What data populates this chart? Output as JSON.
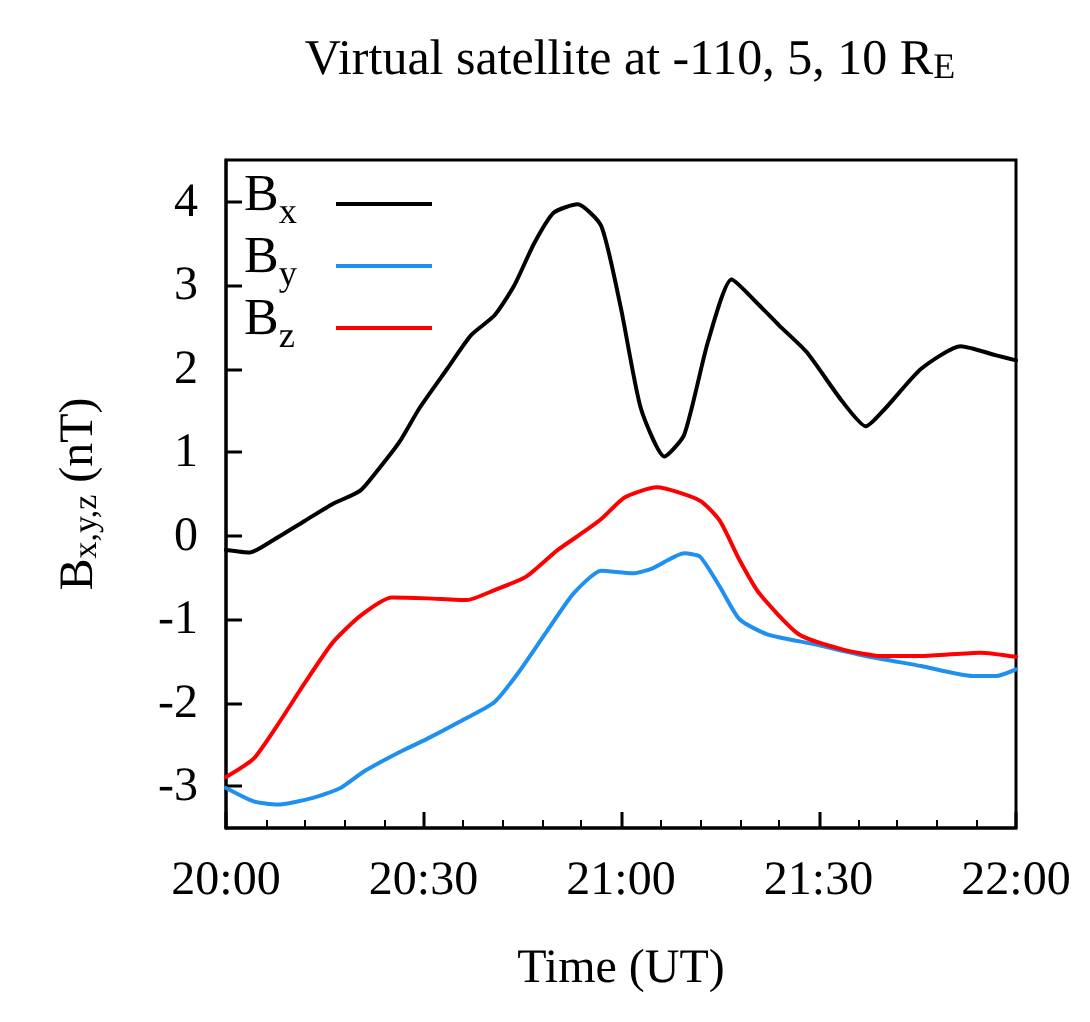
{
  "chart_data": {
    "type": "line",
    "title": "Virtual satellite at -110, 5, 10 R$_{E}$",
    "xlabel": "Time (UT)",
    "ylabel": "B$_{x,y,z}$ (nT)",
    "xlim": [
      20,
      22
    ],
    "xticks": [
      {
        "value": 20,
        "label": "20:00"
      },
      {
        "value": 20.5,
        "label": "20:30"
      },
      {
        "value": 21,
        "label": "21:00"
      },
      {
        "value": 21.5,
        "label": "21:30"
      },
      {
        "value": 22,
        "label": "22:00"
      }
    ],
    "ylim": [
      -3.5,
      4.5
    ],
    "yticks": [
      -3,
      -2,
      -1,
      0,
      1,
      2,
      3,
      4
    ],
    "grid": false,
    "legend": "top left",
    "marker": "none",
    "line_style": "solid",
    "series": [
      {
        "name": "B$_{x}$",
        "color": "#000000",
        "x": [
          20,
          20.06,
          20.12,
          20.2,
          20.27,
          20.34,
          20.39,
          20.44,
          20.49,
          20.56,
          20.62,
          20.68,
          20.73,
          20.78,
          20.83,
          20.89,
          20.95,
          21.0,
          21.05,
          21.11,
          21.16,
          21.22,
          21.28,
          21.35,
          21.4,
          21.47,
          21.56,
          21.62,
          21.67,
          21.76,
          21.86,
          21.95,
          22.0
        ],
        "values": [
          -0.17,
          -0.2,
          -0.05,
          0.18,
          0.38,
          0.54,
          0.82,
          1.13,
          1.53,
          2.0,
          2.4,
          2.64,
          3.0,
          3.5,
          3.87,
          3.97,
          3.71,
          2.72,
          1.53,
          0.95,
          1.21,
          2.32,
          3.07,
          2.76,
          2.52,
          2.2,
          1.61,
          1.31,
          1.53,
          2.0,
          2.27,
          2.16,
          2.1
        ]
      },
      {
        "name": "B$_{y}$",
        "color": "#2090f0",
        "x": [
          20,
          20.07,
          20.13,
          20.22,
          20.29,
          20.35,
          20.44,
          20.51,
          20.59,
          20.68,
          20.74,
          20.81,
          20.88,
          20.95,
          21.03,
          21.08,
          21.16,
          21.2,
          21.25,
          21.3,
          21.37,
          21.49,
          21.62,
          21.76,
          21.89,
          21.95,
          22.0
        ],
        "values": [
          -3.02,
          -3.18,
          -3.22,
          -3.14,
          -3.02,
          -2.82,
          -2.59,
          -2.43,
          -2.23,
          -1.99,
          -1.64,
          -1.16,
          -0.69,
          -0.42,
          -0.45,
          -0.39,
          -0.21,
          -0.25,
          -0.61,
          -1.0,
          -1.18,
          -1.3,
          -1.44,
          -1.56,
          -1.68,
          -1.68,
          -1.6
        ]
      },
      {
        "name": "B$_{z}$",
        "color": "#ff0000",
        "x": [
          20,
          20.07,
          20.13,
          20.2,
          20.27,
          20.34,
          20.42,
          20.51,
          20.61,
          20.68,
          20.76,
          20.84,
          20.91,
          20.95,
          21.01,
          21.09,
          21.2,
          21.25,
          21.3,
          21.35,
          21.45,
          21.56,
          21.66,
          21.76,
          21.91,
          22.0
        ],
        "values": [
          -2.89,
          -2.67,
          -2.27,
          -1.76,
          -1.28,
          -0.96,
          -0.74,
          -0.75,
          -0.77,
          -0.65,
          -0.49,
          -0.17,
          0.06,
          0.2,
          0.46,
          0.58,
          0.42,
          0.18,
          -0.29,
          -0.69,
          -1.18,
          -1.36,
          -1.44,
          -1.44,
          -1.4,
          -1.45
        ]
      }
    ]
  }
}
